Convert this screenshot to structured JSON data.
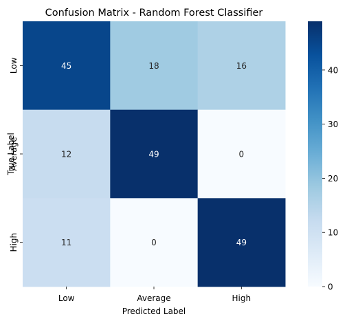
{
  "chart_data": {
    "type": "heatmap",
    "title": "Confusion Matrix - Random Forest Classifier",
    "xlabel": "Predicted Label",
    "ylabel": "True Label",
    "x_categories": [
      "Low",
      "Average",
      "High"
    ],
    "y_categories": [
      "Low",
      "Average",
      "High"
    ],
    "values": [
      [
        45,
        18,
        16
      ],
      [
        12,
        49,
        0
      ],
      [
        11,
        0,
        49
      ]
    ],
    "colormap": "Blues",
    "value_range": [
      0,
      49
    ],
    "colorbar": {
      "ticks": [
        0,
        10,
        20,
        30,
        40
      ],
      "tick_labels": [
        "0",
        "10",
        "20",
        "30",
        "40"
      ]
    },
    "colors": {
      "low": "#f7fbff",
      "high": "#08306b"
    }
  }
}
